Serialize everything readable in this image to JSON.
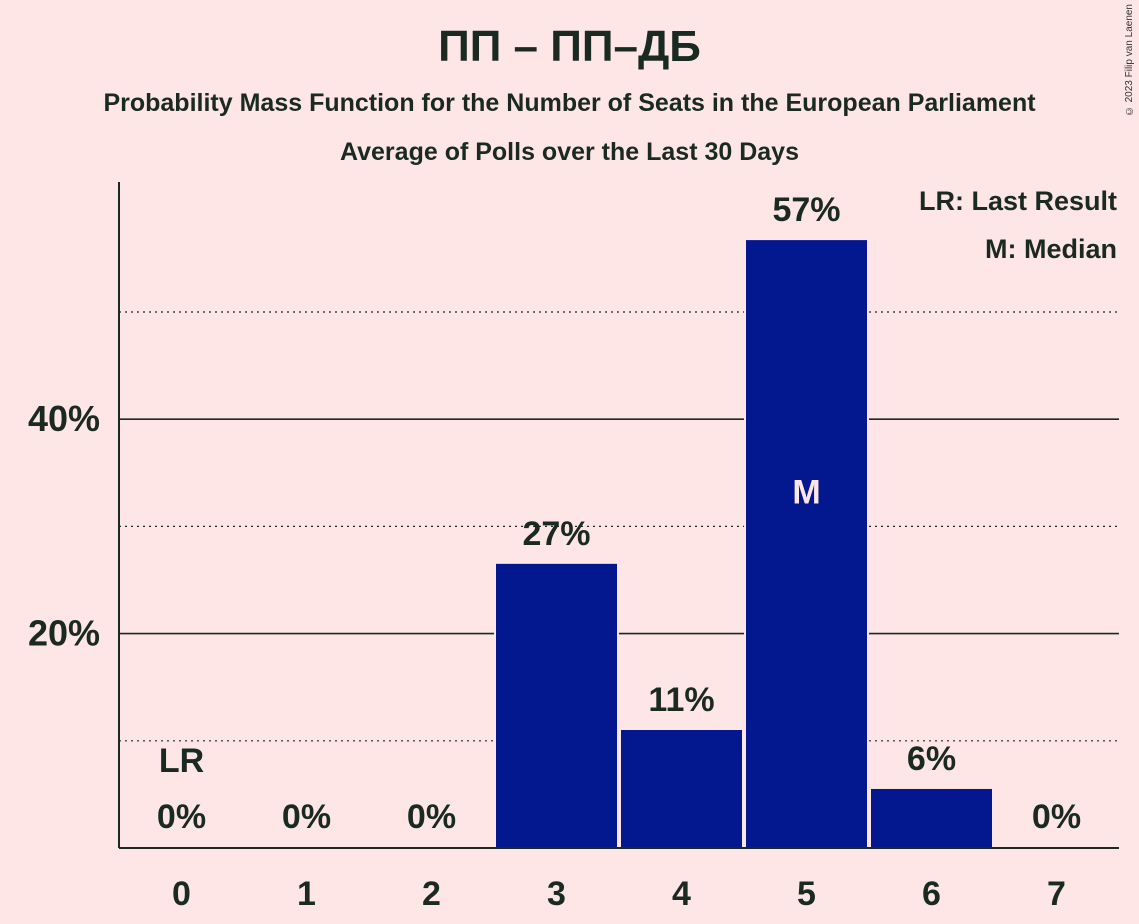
{
  "header": {
    "title": "ПП – ПП–ДБ",
    "subtitle": "Probability Mass Function for the Number of Seats in the European Parliament",
    "subtitle2": "Average of Polls over the Last 30 Days",
    "copyright": "© 2023 Filip van Laenen"
  },
  "legend": {
    "lr": "LR: Last Result",
    "median": "M: Median"
  },
  "colors": {
    "bar": "#03178f",
    "background": "#ffe6e6",
    "text": "#1a2a22"
  },
  "chart_data": {
    "type": "bar",
    "categories": [
      "0",
      "1",
      "2",
      "3",
      "4",
      "5",
      "6",
      "7"
    ],
    "values": [
      0,
      0,
      0,
      26.6,
      11.1,
      56.8,
      5.6,
      0
    ],
    "labels": [
      "0%",
      "0%",
      "0%",
      "27%",
      "11%",
      "57%",
      "6%",
      "0%"
    ],
    "ylim": [
      0,
      62
    ],
    "yticks": [
      {
        "value": 20,
        "label": "20%"
      },
      {
        "value": 40,
        "label": "40%"
      }
    ],
    "minor_grid": [
      10,
      30,
      50
    ],
    "last_result_index": 0,
    "last_result_marker": "LR",
    "median_index": 5,
    "median_marker": "M",
    "legend_position": "top-right",
    "grid": true
  }
}
